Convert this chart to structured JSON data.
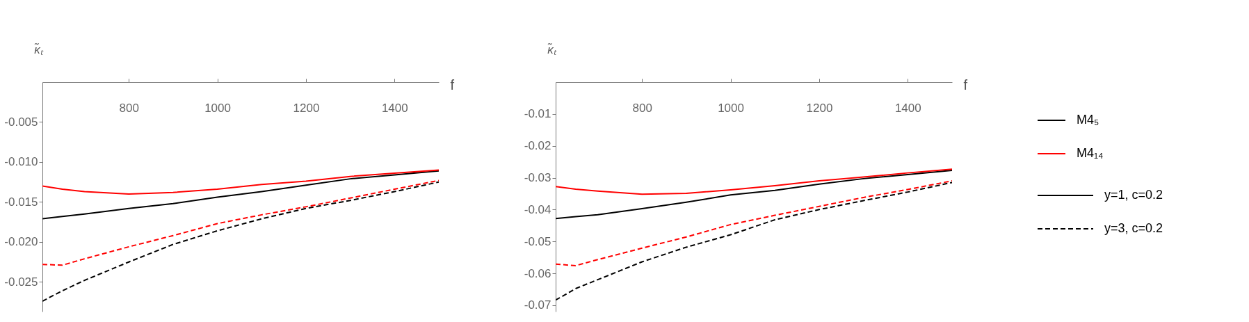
{
  "chart_data": [
    {
      "type": "line",
      "xlabel": "f",
      "ylabel": "κ̃ₜ",
      "xlim": [
        605,
        1500
      ],
      "ylim": [
        -0.0287,
        0
      ],
      "xticks": [
        800,
        1000,
        1200,
        1400
      ],
      "yticks": [
        -0.005,
        {
          "value": -0.01,
          "label": "-0.010"
        },
        -0.015,
        {
          "value": -0.02,
          "label": "-0.020"
        },
        -0.025
      ],
      "grid": false,
      "legend": false,
      "marker": "none",
      "x": [
        605,
        650,
        700,
        800,
        900,
        1000,
        1100,
        1200,
        1300,
        1400,
        1500
      ],
      "series": [
        {
          "color": "#000000",
          "line_style": "solid",
          "values": [
            -0.0171,
            -0.0168,
            -0.0165,
            -0.0158,
            -0.0152,
            -0.0144,
            -0.0137,
            -0.0129,
            -0.0121,
            -0.0116,
            -0.0111
          ]
        },
        {
          "color": "#ff0000",
          "line_style": "solid",
          "values": [
            -0.013,
            -0.0134,
            -0.0137,
            -0.014,
            -0.0138,
            -0.0134,
            -0.0128,
            -0.0124,
            -0.0118,
            -0.0114,
            -0.011
          ]
        },
        {
          "color": "#000000",
          "line_style": "dashed",
          "values": [
            -0.0274,
            -0.0261,
            -0.0248,
            -0.0225,
            -0.0203,
            -0.0186,
            -0.0171,
            -0.0158,
            -0.0148,
            -0.0137,
            -0.0125
          ]
        },
        {
          "color": "#ff0000",
          "line_style": "dashed",
          "values": [
            -0.0228,
            -0.0229,
            -0.0221,
            -0.0206,
            -0.0192,
            -0.0177,
            -0.0166,
            -0.0156,
            -0.0145,
            -0.0134,
            -0.0123
          ]
        }
      ]
    },
    {
      "type": "line",
      "xlabel": "f",
      "ylabel": "κ̃ₜ",
      "xlim": [
        605,
        1500
      ],
      "ylim": [
        -0.072,
        0
      ],
      "xticks": [
        800,
        1000,
        1200,
        1400
      ],
      "yticks": [
        -0.01,
        -0.02,
        -0.03,
        -0.04,
        -0.05,
        -0.06,
        -0.07
      ],
      "grid": false,
      "legend": "right",
      "marker": "none",
      "annotations": [
        "y=1, c=0.2",
        "y=3, c=0.2"
      ],
      "x": [
        605,
        650,
        700,
        800,
        900,
        1000,
        1100,
        1200,
        1300,
        1400,
        1500
      ],
      "series": [
        {
          "name": "M4₅",
          "color": "#000000",
          "line_style": "solid",
          "values": [
            -0.0428,
            -0.0422,
            -0.0416,
            -0.0397,
            -0.0377,
            -0.0354,
            -0.034,
            -0.032,
            -0.0303,
            -0.029,
            -0.0277
          ]
        },
        {
          "name": "M4₁₄",
          "color": "#ff0000",
          "line_style": "solid",
          "values": [
            -0.0328,
            -0.0336,
            -0.0342,
            -0.0352,
            -0.0349,
            -0.0338,
            -0.0325,
            -0.031,
            -0.0298,
            -0.0285,
            -0.0273
          ]
        },
        {
          "color": "#000000",
          "line_style": "dashed",
          "values": [
            -0.0684,
            -0.0648,
            -0.062,
            -0.0564,
            -0.0518,
            -0.0479,
            -0.0432,
            -0.04,
            -0.0372,
            -0.0345,
            -0.0315
          ]
        },
        {
          "color": "#ff0000",
          "line_style": "dashed",
          "values": [
            -0.0571,
            -0.0576,
            -0.0557,
            -0.0521,
            -0.0486,
            -0.0447,
            -0.0418,
            -0.039,
            -0.0362,
            -0.0337,
            -0.031
          ]
        }
      ]
    }
  ]
}
